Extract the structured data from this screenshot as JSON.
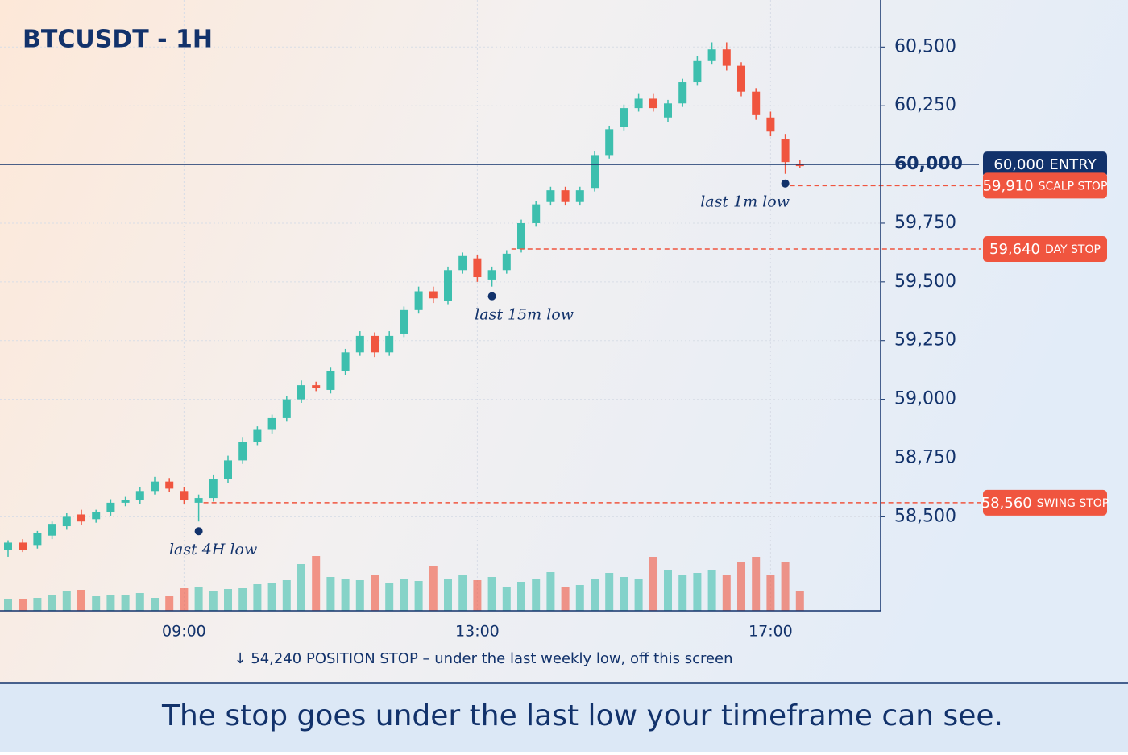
{
  "chart_data": {
    "type": "candlestick",
    "title": "BTCUSDT - 1H",
    "categories": [
      null,
      null,
      null,
      null,
      null,
      null,
      null,
      null,
      null,
      null,
      null,
      null,
      "09:00",
      null,
      null,
      null,
      null,
      null,
      null,
      null,
      null,
      null,
      null,
      null,
      null,
      null,
      null,
      null,
      null,
      null,
      null,
      null,
      "13:00",
      null,
      null,
      null,
      null,
      null,
      null,
      null,
      null,
      null,
      null,
      null,
      null,
      null,
      null,
      null,
      null,
      null,
      null,
      null,
      "17:00",
      null,
      null
    ],
    "open": [
      58360,
      58390,
      58380,
      58420,
      58460,
      58510,
      58490,
      58520,
      58560,
      58570,
      58610,
      58650,
      58610,
      58560,
      58580,
      58660,
      58740,
      58820,
      58870,
      58920,
      59000,
      59060,
      59040,
      59120,
      59200,
      59270,
      59200,
      59280,
      59380,
      59460,
      59420,
      59550,
      59600,
      59510,
      59550,
      59640,
      59750,
      59840,
      59890,
      59840,
      59900,
      60040,
      60160,
      60240,
      60280,
      60200,
      60260,
      60350,
      60440,
      60490,
      60420,
      60310,
      60200,
      60110,
      60000
    ],
    "high": [
      58400,
      58405,
      58440,
      58480,
      58515,
      58530,
      58530,
      58575,
      58585,
      58625,
      58670,
      58665,
      58625,
      58595,
      58680,
      58760,
      58840,
      58885,
      58935,
      59015,
      59080,
      59075,
      59135,
      59215,
      59290,
      59285,
      59290,
      59395,
      59480,
      59480,
      59565,
      59625,
      59615,
      59565,
      59635,
      59765,
      59845,
      59905,
      59905,
      59905,
      60055,
      60165,
      60255,
      60300,
      60300,
      60275,
      60365,
      60460,
      60520,
      60520,
      60435,
      60325,
      60225,
      60130,
      60020
    ],
    "low": [
      58330,
      58350,
      58365,
      58405,
      58445,
      58465,
      58475,
      58505,
      58545,
      58555,
      58595,
      58605,
      58555,
      58480,
      58565,
      58645,
      58725,
      58805,
      58855,
      58905,
      58985,
      59035,
      59025,
      59105,
      59185,
      59180,
      59185,
      59265,
      59365,
      59410,
      59405,
      59535,
      59500,
      59480,
      59535,
      59625,
      59735,
      59825,
      59825,
      59825,
      59885,
      60025,
      60145,
      60225,
      60225,
      60180,
      60245,
      60335,
      60425,
      60400,
      60290,
      60190,
      60120,
      59960,
      59985
    ],
    "close": [
      58390,
      58360,
      58430,
      58470,
      58500,
      58480,
      58520,
      58560,
      58570,
      58610,
      58650,
      58620,
      58570,
      58580,
      58660,
      58740,
      58820,
      58870,
      58920,
      59000,
      59060,
      59050,
      59120,
      59200,
      59270,
      59200,
      59270,
      59380,
      59460,
      59430,
      59550,
      59610,
      59520,
      59550,
      59620,
      59750,
      59830,
      59890,
      59840,
      59890,
      60040,
      60150,
      60240,
      60280,
      60240,
      60260,
      60350,
      60440,
      60490,
      60420,
      60310,
      60210,
      60140,
      60010,
      59995
    ],
    "volume": [
      14,
      15,
      16,
      20,
      24,
      26,
      18,
      19,
      20,
      22,
      16,
      18,
      28,
      30,
      24,
      27,
      28,
      33,
      35,
      38,
      58,
      68,
      42,
      40,
      38,
      45,
      35,
      40,
      37,
      55,
      39,
      45,
      38,
      42,
      30,
      36,
      40,
      48,
      30,
      32,
      40,
      47,
      42,
      40,
      67,
      50,
      44,
      47,
      50,
      45,
      60,
      67,
      45,
      61,
      25
    ],
    "up_color": "#3dbfae",
    "down_color": "#f0553f",
    "ylim": [
      58100,
      60700
    ],
    "yticks": [
      {
        "value": 58500,
        "label": "58,500"
      },
      {
        "value": 58750,
        "label": "58,750"
      },
      {
        "value": 59000,
        "label": "59,000"
      },
      {
        "value": 59250,
        "label": "59,250"
      },
      {
        "value": 59500,
        "label": "59,500"
      },
      {
        "value": 59750,
        "label": "59,750"
      },
      {
        "value": 60000,
        "label": "60,000"
      },
      {
        "value": 60250,
        "label": "60,250"
      },
      {
        "value": 60500,
        "label": "60,500"
      }
    ],
    "grid": true,
    "levels": [
      {
        "value": 60000,
        "label": "60,000",
        "tag": "ENTRY",
        "color": "#12326b"
      },
      {
        "value": 59910,
        "label": "59,910",
        "tag": "SCALP STOP",
        "color": "#f0553f"
      },
      {
        "value": 59640,
        "label": "59,640",
        "tag": "DAY STOP",
        "color": "#f0553f"
      },
      {
        "value": 58560,
        "label": "58,560",
        "tag": "SWING STOP",
        "color": "#f0553f"
      }
    ],
    "annotations": [
      "last 1m low",
      "last 15m low",
      "last 4H low"
    ],
    "footnote": "↓ 54,240 POSITION STOP – under the last weekly low, off this screen",
    "caption": "The stop goes under the last low your timeframe can see."
  }
}
